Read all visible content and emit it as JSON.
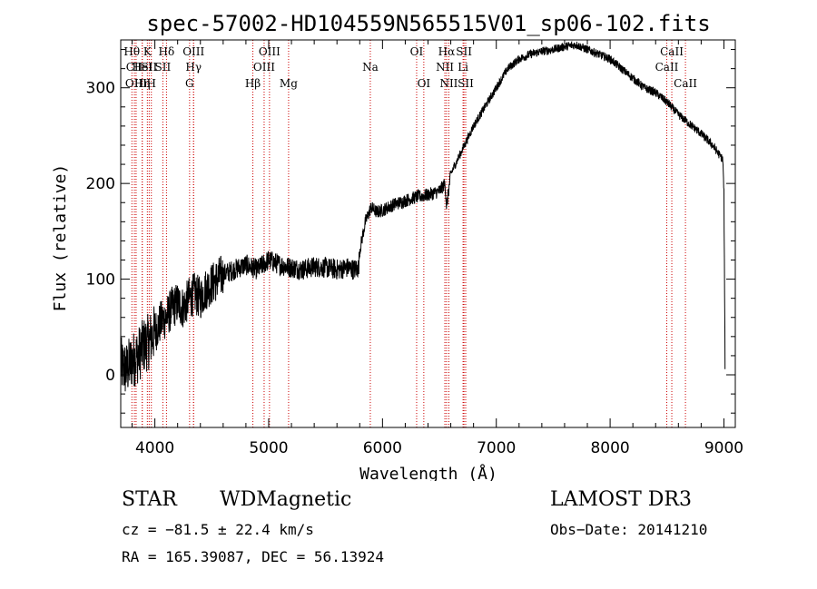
{
  "chart_data": {
    "type": "line",
    "title": "spec-57002-HD104559N565515V01_sp06-102.fits",
    "xlabel": "Wavelength (Å)",
    "ylabel": "Flux (relative)",
    "xlim": [
      3700,
      9100
    ],
    "ylim": [
      -55,
      350
    ],
    "xticks": [
      4000,
      5000,
      6000,
      7000,
      8000,
      9000
    ],
    "yticks": [
      0,
      100,
      200,
      300
    ],
    "series": [
      {
        "name": "spectrum",
        "x": [
          3700,
          3750,
          3800,
          3850,
          3900,
          3950,
          4000,
          4050,
          4100,
          4150,
          4200,
          4250,
          4300,
          4350,
          4400,
          4450,
          4500,
          4550,
          4600,
          4700,
          4800,
          4900,
          5000,
          5100,
          5200,
          5300,
          5400,
          5500,
          5600,
          5700,
          5750,
          5790,
          5800,
          5850,
          5900,
          5950,
          6000,
          6100,
          6200,
          6300,
          6400,
          6450,
          6500,
          6550,
          6563,
          6600,
          6700,
          6800,
          6900,
          7000,
          7100,
          7200,
          7300,
          7400,
          7500,
          7600,
          7700,
          7800,
          7900,
          8000,
          8100,
          8200,
          8300,
          8400,
          8500,
          8600,
          8700,
          8800,
          8900,
          8990,
          9000,
          9010
        ],
        "values": [
          10,
          5,
          15,
          20,
          30,
          35,
          45,
          55,
          60,
          70,
          75,
          70,
          80,
          85,
          80,
          90,
          95,
          100,
          105,
          110,
          115,
          110,
          120,
          115,
          112,
          110,
          113,
          112,
          110,
          112,
          110,
          112,
          130,
          160,
          175,
          170,
          172,
          178,
          182,
          186,
          188,
          190,
          192,
          200,
          175,
          210,
          235,
          260,
          280,
          300,
          320,
          330,
          335,
          338,
          340,
          343,
          345,
          340,
          335,
          330,
          320,
          310,
          300,
          295,
          285,
          272,
          262,
          252,
          240,
          225,
          190,
          10
        ]
      }
    ],
    "lines": [
      {
        "name": "Hθ",
        "x": 3798,
        "row": 0
      },
      {
        "name": "CII",
        "x": 3820,
        "row": 1
      },
      {
        "name": "OIII",
        "x": 3835,
        "row": 2
      },
      {
        "name": "K",
        "x": 3934,
        "row": 0
      },
      {
        "name": "HeI",
        "x": 3889,
        "row": 1
      },
      {
        "name": "Hη",
        "x": 3889,
        "row": 2
      },
      {
        "name": "SII",
        "x": 3950,
        "row": 1
      },
      {
        "name": "H",
        "x": 3969,
        "row": 2
      },
      {
        "name": "Hδ",
        "x": 4102,
        "row": 0
      },
      {
        "name": "SII",
        "x": 4070,
        "row": 1
      },
      {
        "name": "OIII",
        "x": 4340,
        "row": 0
      },
      {
        "name": "Hγ",
        "x": 4340,
        "row": 1
      },
      {
        "name": "G",
        "x": 4305,
        "row": 2
      },
      {
        "name": "Hβ",
        "x": 4861,
        "row": 2
      },
      {
        "name": "OIII",
        "x": 4960,
        "row": 1
      },
      {
        "name": "OIII",
        "x": 5007,
        "row": 0
      },
      {
        "name": "Mg",
        "x": 5175,
        "row": 2
      },
      {
        "name": "Na",
        "x": 5893,
        "row": 1
      },
      {
        "name": "OI",
        "x": 6300,
        "row": 0
      },
      {
        "name": "OI",
        "x": 6363,
        "row": 2
      },
      {
        "name": "Hα",
        "x": 6563,
        "row": 0
      },
      {
        "name": "NII",
        "x": 6548,
        "row": 1
      },
      {
        "name": "NII",
        "x": 6583,
        "row": 2
      },
      {
        "name": "SII",
        "x": 6716,
        "row": 0
      },
      {
        "name": "Li",
        "x": 6708,
        "row": 1
      },
      {
        "name": "SII",
        "x": 6731,
        "row": 2
      },
      {
        "name": "CaII",
        "x": 8542,
        "row": 0
      },
      {
        "name": "CaII",
        "x": 8498,
        "row": 1
      },
      {
        "name": "CaII",
        "x": 8662,
        "row": 2
      }
    ]
  },
  "info": {
    "object_type": "STAR",
    "subclass": "WDMagnetic",
    "survey": "LAMOST DR3",
    "cz": "cz = −81.5 ± 22.4 km/s",
    "obs_date": "Obs−Date: 20141210",
    "coords": "RA = 165.39087, DEC =  56.13924"
  },
  "colors": {
    "spectrum": "#000000",
    "line_marker": "#cc0000",
    "axes": "#000000"
  }
}
